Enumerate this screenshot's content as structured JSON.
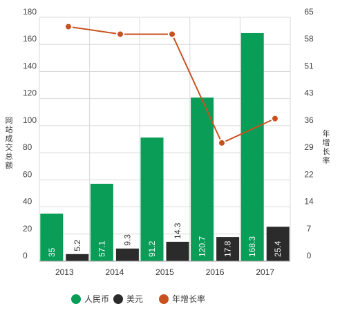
{
  "chart_data": {
    "type": "bar",
    "categories": [
      "2013",
      "2014",
      "2015",
      "2016",
      "2017"
    ],
    "series": [
      {
        "name": "人民币",
        "type": "bar",
        "axis": "left",
        "values": [
          35,
          57.1,
          91.2,
          120.7,
          168.3
        ],
        "labels": [
          "35",
          "57.1",
          "91.2",
          "120.7",
          "168.3"
        ],
        "color": "#0a9d58"
      },
      {
        "name": "美元",
        "type": "bar",
        "axis": "left",
        "values": [
          5.2,
          9.3,
          14.3,
          17.8,
          25.4
        ],
        "labels": [
          "5.2",
          "9.3",
          "14.3",
          "17.8",
          "25.4"
        ],
        "color": "#2b2b2b"
      },
      {
        "name": "年增长率",
        "type": "line",
        "axis": "right",
        "values": [
          62.5,
          60.5,
          60.5,
          31.5,
          38
        ],
        "color": "#c8511f"
      }
    ],
    "ylabel": "网站成交总额",
    "y2label": "年增长率",
    "ylim": [
      0,
      180
    ],
    "yticks": [
      "0",
      "20",
      "40",
      "60",
      "80",
      "100",
      "120",
      "140",
      "160",
      "180"
    ],
    "y2lim": [
      0,
      65
    ],
    "y2ticks": [
      "0",
      "7",
      "14",
      "22",
      "29",
      "36",
      "43",
      "51",
      "58",
      "65"
    ],
    "grid": true,
    "legend_position": "bottom"
  }
}
